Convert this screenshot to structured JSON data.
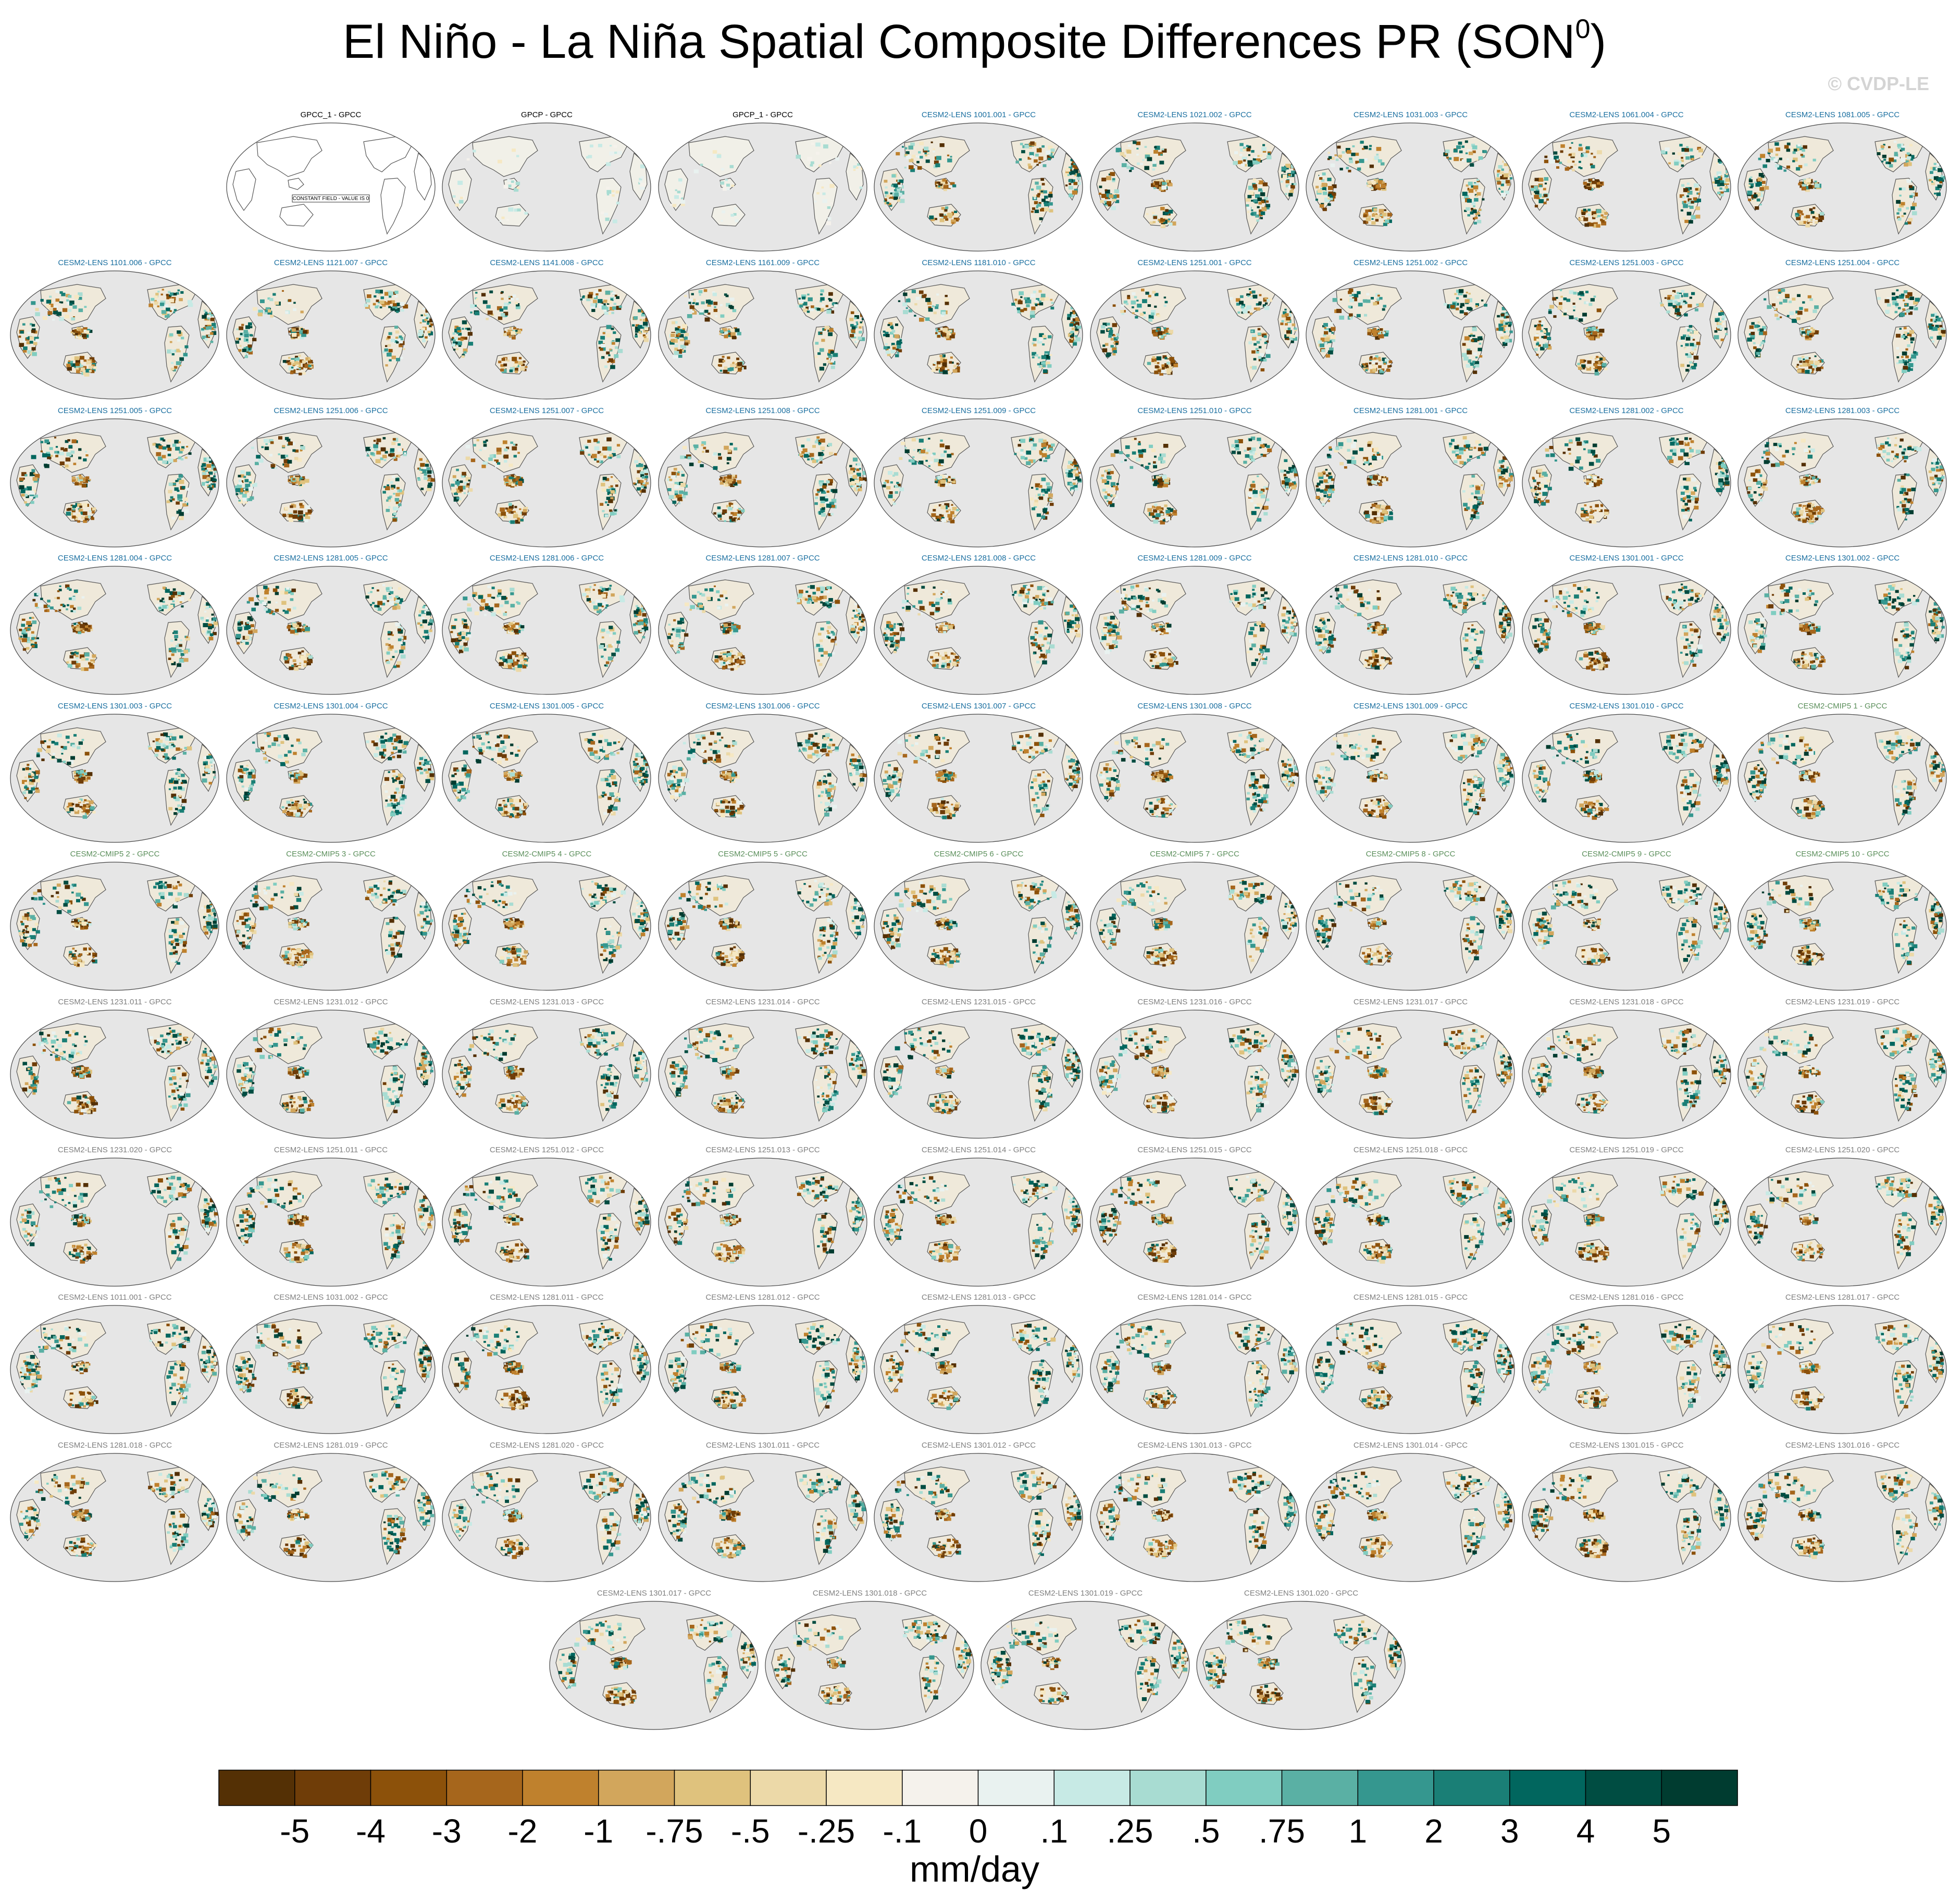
{
  "title": "El Niño - La Niña Spatial Composite Differences PR (SON",
  "title_superscript": "0",
  "title_suffix": ")",
  "copyright": "© CVDP-LE",
  "colors": {
    "obs_label": "#000000",
    "lens_label": "#1a6fa0",
    "cmip_label": "#5b8f5b",
    "gray_label": "#808080",
    "ocean": "#e6e6e6",
    "coast": "#555555"
  },
  "chart_data": {
    "type": "heatmap",
    "description_type": "small-multiples map grid",
    "units": "mm/day",
    "colorbar": {
      "labels": [
        "-5",
        "-4",
        "-3",
        "-2",
        "-1",
        "-.75",
        "-.5",
        "-.25",
        "-.1",
        "0",
        ".1",
        ".25",
        ".5",
        ".75",
        "1",
        "2",
        "3",
        "4",
        "5"
      ],
      "colors": [
        "#543005",
        "#6f3d08",
        "#8c510a",
        "#a6661c",
        "#bf812d",
        "#d2a65c",
        "#dfc27d",
        "#ecd9a8",
        "#f6e8c3",
        "#f5f2ec",
        "#e9f2f0",
        "#c7eae5",
        "#a8dcd2",
        "#80cdc1",
        "#5ab0a4",
        "#35978f",
        "#1a7f76",
        "#01665e",
        "#004d42",
        "#003c30"
      ]
    },
    "panels": [
      {
        "label": "GPCC_1 - GPCC",
        "group": "obs",
        "note": "CONSTANT FIELD - VALUE IS 0"
      },
      {
        "label": "GPCP - GPCC",
        "group": "obs"
      },
      {
        "label": "GPCP_1 - GPCC",
        "group": "obs"
      },
      {
        "label": "CESM2-LENS 1001.001 - GPCC",
        "group": "lens"
      },
      {
        "label": "CESM2-LENS 1021.002 - GPCC",
        "group": "lens"
      },
      {
        "label": "CESM2-LENS 1031.003 - GPCC",
        "group": "lens"
      },
      {
        "label": "CESM2-LENS 1061.004 - GPCC",
        "group": "lens"
      },
      {
        "label": "CESM2-LENS 1081.005 - GPCC",
        "group": "lens"
      },
      {
        "label": "CESM2-LENS 1101.006 - GPCC",
        "group": "lens"
      },
      {
        "label": "CESM2-LENS 1121.007 - GPCC",
        "group": "lens"
      },
      {
        "label": "CESM2-LENS 1141.008 - GPCC",
        "group": "lens"
      },
      {
        "label": "CESM2-LENS 1161.009 - GPCC",
        "group": "lens"
      },
      {
        "label": "CESM2-LENS 1181.010 - GPCC",
        "group": "lens"
      },
      {
        "label": "CESM2-LENS 1251.001 - GPCC",
        "group": "lens"
      },
      {
        "label": "CESM2-LENS 1251.002 - GPCC",
        "group": "lens"
      },
      {
        "label": "CESM2-LENS 1251.003 - GPCC",
        "group": "lens"
      },
      {
        "label": "CESM2-LENS 1251.004 - GPCC",
        "group": "lens"
      },
      {
        "label": "CESM2-LENS 1251.005 - GPCC",
        "group": "lens"
      },
      {
        "label": "CESM2-LENS 1251.006 - GPCC",
        "group": "lens"
      },
      {
        "label": "CESM2-LENS 1251.007 - GPCC",
        "group": "lens"
      },
      {
        "label": "CESM2-LENS 1251.008 - GPCC",
        "group": "lens"
      },
      {
        "label": "CESM2-LENS 1251.009 - GPCC",
        "group": "lens"
      },
      {
        "label": "CESM2-LENS 1251.010 - GPCC",
        "group": "lens"
      },
      {
        "label": "CESM2-LENS 1281.001 - GPCC",
        "group": "lens"
      },
      {
        "label": "CESM2-LENS 1281.002 - GPCC",
        "group": "lens"
      },
      {
        "label": "CESM2-LENS 1281.003 - GPCC",
        "group": "lens"
      },
      {
        "label": "CESM2-LENS 1281.004 - GPCC",
        "group": "lens"
      },
      {
        "label": "CESM2-LENS 1281.005 - GPCC",
        "group": "lens"
      },
      {
        "label": "CESM2-LENS 1281.006 - GPCC",
        "group": "lens"
      },
      {
        "label": "CESM2-LENS 1281.007 - GPCC",
        "group": "lens"
      },
      {
        "label": "CESM2-LENS 1281.008 - GPCC",
        "group": "lens"
      },
      {
        "label": "CESM2-LENS 1281.009 - GPCC",
        "group": "lens"
      },
      {
        "label": "CESM2-LENS 1281.010 - GPCC",
        "group": "lens"
      },
      {
        "label": "CESM2-LENS 1301.001 - GPCC",
        "group": "lens"
      },
      {
        "label": "CESM2-LENS 1301.002 - GPCC",
        "group": "lens"
      },
      {
        "label": "CESM2-LENS 1301.003 - GPCC",
        "group": "lens"
      },
      {
        "label": "CESM2-LENS 1301.004 - GPCC",
        "group": "lens"
      },
      {
        "label": "CESM2-LENS 1301.005 - GPCC",
        "group": "lens"
      },
      {
        "label": "CESM2-LENS 1301.006 - GPCC",
        "group": "lens"
      },
      {
        "label": "CESM2-LENS 1301.007 - GPCC",
        "group": "lens"
      },
      {
        "label": "CESM2-LENS 1301.008 - GPCC",
        "group": "lens"
      },
      {
        "label": "CESM2-LENS 1301.009 - GPCC",
        "group": "lens"
      },
      {
        "label": "CESM2-LENS 1301.010 - GPCC",
        "group": "lens"
      },
      {
        "label": "CESM2-CMIP5 1 - GPCC",
        "group": "cmip"
      },
      {
        "label": "CESM2-CMIP5 2 - GPCC",
        "group": "cmip"
      },
      {
        "label": "CESM2-CMIP5 3 - GPCC",
        "group": "cmip"
      },
      {
        "label": "CESM2-CMIP5 4 - GPCC",
        "group": "cmip"
      },
      {
        "label": "CESM2-CMIP5 5 - GPCC",
        "group": "cmip"
      },
      {
        "label": "CESM2-CMIP5 6 - GPCC",
        "group": "cmip"
      },
      {
        "label": "CESM2-CMIP5 7 - GPCC",
        "group": "cmip"
      },
      {
        "label": "CESM2-CMIP5 8 - GPCC",
        "group": "cmip"
      },
      {
        "label": "CESM2-CMIP5 9 - GPCC",
        "group": "cmip"
      },
      {
        "label": "CESM2-CMIP5 10 - GPCC",
        "group": "cmip"
      },
      {
        "label": "CESM2-LENS 1231.011 - GPCC",
        "group": "gray"
      },
      {
        "label": "CESM2-LENS 1231.012 - GPCC",
        "group": "gray"
      },
      {
        "label": "CESM2-LENS 1231.013 - GPCC",
        "group": "gray"
      },
      {
        "label": "CESM2-LENS 1231.014 - GPCC",
        "group": "gray"
      },
      {
        "label": "CESM2-LENS 1231.015 - GPCC",
        "group": "gray"
      },
      {
        "label": "CESM2-LENS 1231.016 - GPCC",
        "group": "gray"
      },
      {
        "label": "CESM2-LENS 1231.017 - GPCC",
        "group": "gray"
      },
      {
        "label": "CESM2-LENS 1231.018 - GPCC",
        "group": "gray"
      },
      {
        "label": "CESM2-LENS 1231.019 - GPCC",
        "group": "gray"
      },
      {
        "label": "CESM2-LENS 1231.020 - GPCC",
        "group": "gray"
      },
      {
        "label": "CESM2-LENS 1251.011 - GPCC",
        "group": "gray"
      },
      {
        "label": "CESM2-LENS 1251.012 - GPCC",
        "group": "gray"
      },
      {
        "label": "CESM2-LENS 1251.013 - GPCC",
        "group": "gray"
      },
      {
        "label": "CESM2-LENS 1251.014 - GPCC",
        "group": "gray"
      },
      {
        "label": "CESM2-LENS 1251.015 - GPCC",
        "group": "gray"
      },
      {
        "label": "CESM2-LENS 1251.018 - GPCC",
        "group": "gray"
      },
      {
        "label": "CESM2-LENS 1251.019 - GPCC",
        "group": "gray"
      },
      {
        "label": "CESM2-LENS 1251.020 - GPCC",
        "group": "gray"
      },
      {
        "label": "CESM2-LENS 1011.001 - GPCC",
        "group": "gray"
      },
      {
        "label": "CESM2-LENS 1031.002 - GPCC",
        "group": "gray"
      },
      {
        "label": "CESM2-LENS 1281.011 - GPCC",
        "group": "gray"
      },
      {
        "label": "CESM2-LENS 1281.012 - GPCC",
        "group": "gray"
      },
      {
        "label": "CESM2-LENS 1281.013 - GPCC",
        "group": "gray"
      },
      {
        "label": "CESM2-LENS 1281.014 - GPCC",
        "group": "gray"
      },
      {
        "label": "CESM2-LENS 1281.015 - GPCC",
        "group": "gray"
      },
      {
        "label": "CESM2-LENS 1281.016 - GPCC",
        "group": "gray"
      },
      {
        "label": "CESM2-LENS 1281.017 - GPCC",
        "group": "gray"
      },
      {
        "label": "CESM2-LENS 1281.018 - GPCC",
        "group": "gray"
      },
      {
        "label": "CESM2-LENS 1281.019 - GPCC",
        "group": "gray"
      },
      {
        "label": "CESM2-LENS 1281.020 - GPCC",
        "group": "gray"
      },
      {
        "label": "CESM2-LENS 1301.011 - GPCC",
        "group": "gray"
      },
      {
        "label": "CESM2-LENS 1301.012 - GPCC",
        "group": "gray"
      },
      {
        "label": "CESM2-LENS 1301.013 - GPCC",
        "group": "gray"
      },
      {
        "label": "CESM2-LENS 1301.014 - GPCC",
        "group": "gray"
      },
      {
        "label": "CESM2-LENS 1301.015 - GPCC",
        "group": "gray"
      },
      {
        "label": "CESM2-LENS 1301.016 - GPCC",
        "group": "gray"
      },
      {
        "label": "CESM2-LENS 1301.017 - GPCC",
        "group": "gray"
      },
      {
        "label": "CESM2-LENS 1301.018 - GPCC",
        "group": "gray"
      },
      {
        "label": "CESM2-LENS 1301.019 - GPCC",
        "group": "gray"
      },
      {
        "label": "CESM2-LENS 1301.020 - GPCC",
        "group": "gray"
      }
    ]
  }
}
